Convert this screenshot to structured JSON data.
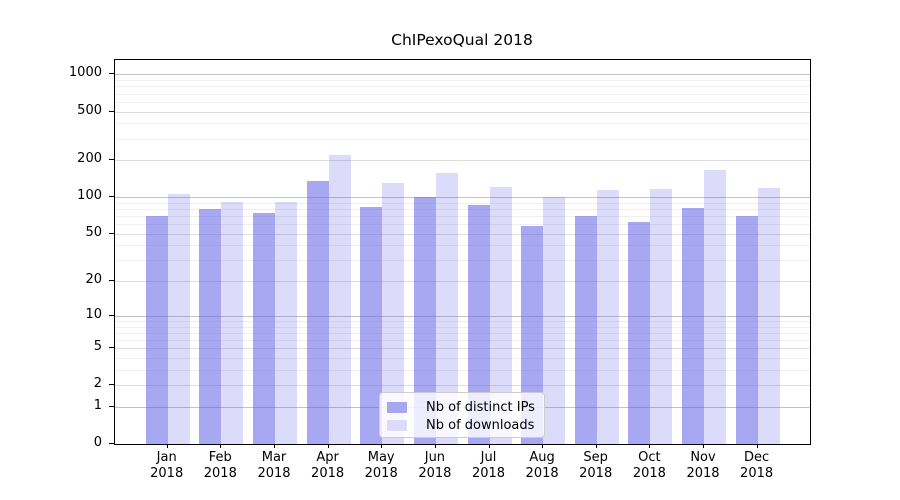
{
  "figure": {
    "title": "ChIPexoQual 2018"
  },
  "chart_data": {
    "type": "bar",
    "title": "ChIPexoQual 2018",
    "xlabel": "",
    "ylabel": "",
    "categories": [
      "Jan",
      "Feb",
      "Mar",
      "Apr",
      "May",
      "Jun",
      "Jul",
      "Aug",
      "Sep",
      "Oct",
      "Nov",
      "Dec"
    ],
    "x_year": "2018",
    "series": [
      {
        "name": "Nb of distinct IPs",
        "color": "#a7a7f0",
        "bar_css": "rgba(95,95,232,0.55)",
        "values": [
          70,
          80,
          74,
          135,
          83,
          100,
          87,
          58,
          70,
          63,
          81,
          70
        ]
      },
      {
        "name": "Nb of downloads",
        "color": "#dcdcf8",
        "bar_css": "rgba(95,95,232,0.22)",
        "values": [
          106,
          92,
          92,
          220,
          131,
          158,
          121,
          100,
          114,
          117,
          167,
          120
        ]
      }
    ],
    "y_scale": "log1p",
    "y_ticks": [
      0,
      1,
      2,
      5,
      10,
      20,
      50,
      100,
      200,
      500,
      1000
    ],
    "y_minor_ticks": [
      3,
      4,
      6,
      7,
      8,
      9,
      30,
      40,
      60,
      70,
      80,
      90,
      300,
      400,
      600,
      700,
      800,
      900
    ],
    "y_top": 1310,
    "grid": true,
    "legend_position": "lower center"
  }
}
